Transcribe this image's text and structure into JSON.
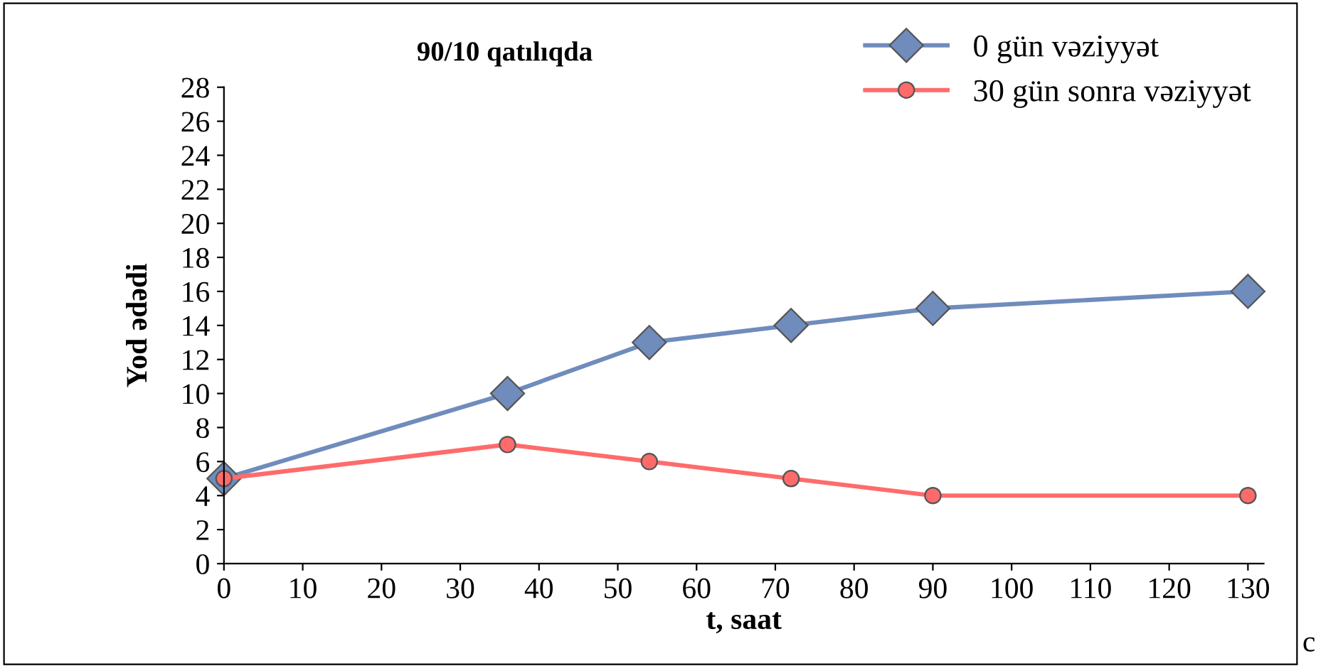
{
  "chart_data": {
    "type": "line",
    "title": "90/10 qatılıqda",
    "xlabel": "t, saat",
    "ylabel": "Yod ədədi",
    "annotations": [
      "c"
    ],
    "series": [
      {
        "name": "0 gün vəziyyət",
        "color": "#6f8cbc",
        "marker": "diamond",
        "x": [
          0,
          36,
          54,
          72,
          90,
          130
        ],
        "values": [
          5,
          10,
          13,
          14,
          15,
          16
        ]
      },
      {
        "name": "30 gün sonra vəziyyət",
        "color": "#ff6b6b",
        "marker": "circle",
        "x": [
          0,
          36,
          54,
          72,
          90,
          130
        ],
        "values": [
          5,
          7,
          6,
          5,
          4,
          4
        ]
      }
    ],
    "xlim": [
      0,
      132
    ],
    "xticks": [
      0,
      10,
      20,
      30,
      40,
      50,
      60,
      70,
      80,
      90,
      100,
      110,
      120,
      130
    ],
    "ylim": [
      0,
      28
    ],
    "yticks": [
      0,
      2,
      4,
      6,
      8,
      10,
      12,
      14,
      16,
      18,
      20,
      22,
      24,
      26,
      28
    ],
    "grid": false,
    "legend": "top right",
    "line_style": "solid"
  }
}
